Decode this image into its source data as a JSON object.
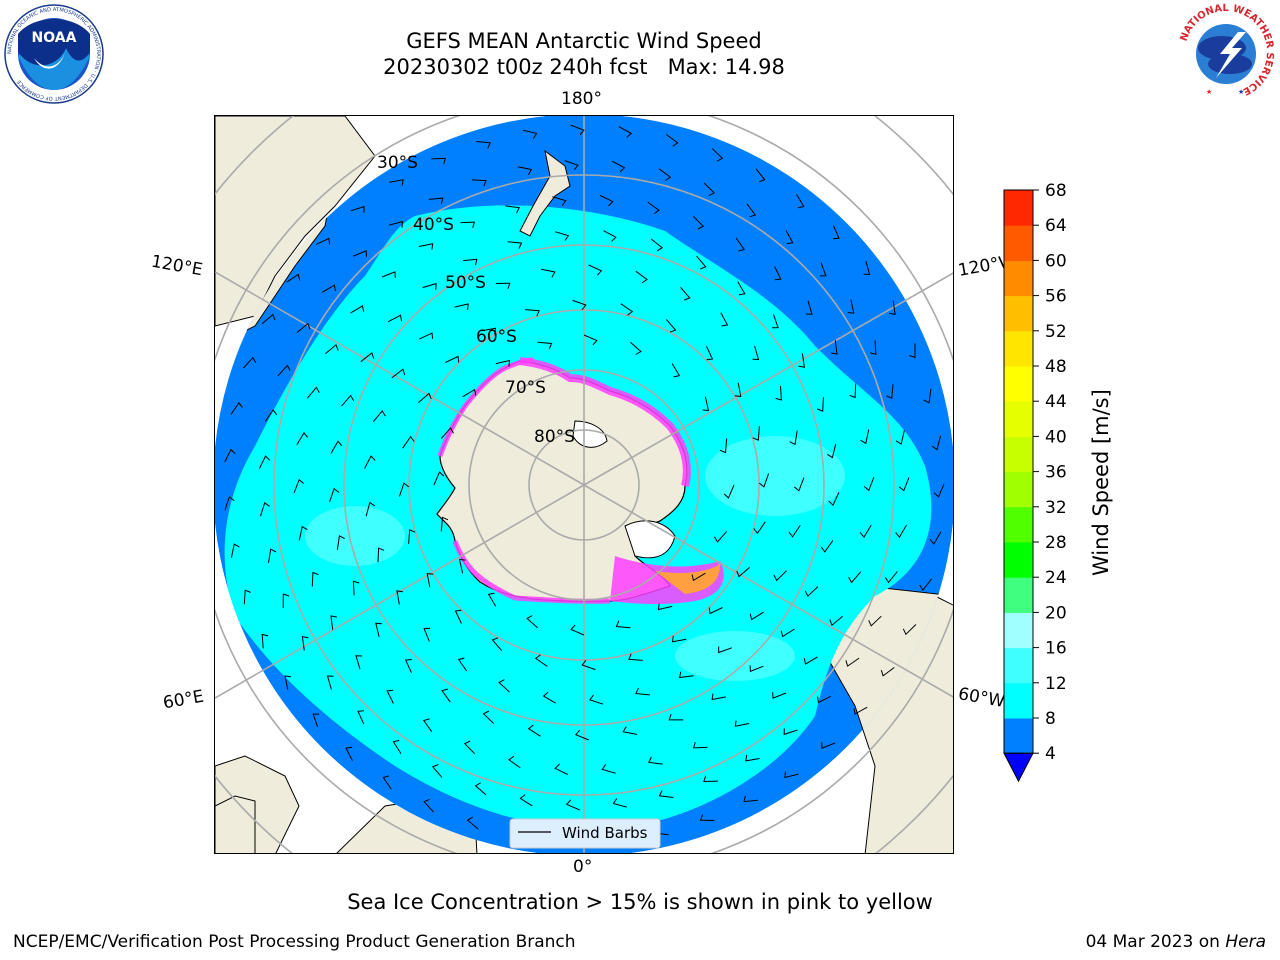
{
  "title": {
    "line1": "GEFS MEAN Antarctic Wind Speed",
    "line2": "20230302 t00z 240h fcst   Max: 14.98"
  },
  "map": {
    "projection": "south-polar-stereographic",
    "longitude_labels": {
      "top": "180°",
      "bottom": "0°",
      "upper_left": "120°E",
      "upper_right": "120°W",
      "lower_left": "60°E",
      "lower_right": "60°W"
    },
    "latitude_labels": [
      "30°S",
      "40°S",
      "50°S",
      "60°S",
      "70°S",
      "80°S"
    ],
    "legend_label": "Wind Barbs",
    "colors": {
      "land": "#efecdc",
      "ocean_4_8": "#0080ff",
      "ocean_8_12": "#00ffff",
      "ocean_12_16": "#40ffff",
      "sea_ice": "#ff40ff",
      "grid": "#aaaaaa"
    }
  },
  "colorbar": {
    "label": "Wind Speed [m/s]",
    "ticks": [
      "4",
      "8",
      "12",
      "16",
      "20",
      "24",
      "28",
      "32",
      "36",
      "40",
      "44",
      "48",
      "52",
      "56",
      "60",
      "64",
      "68"
    ],
    "colors": [
      "#0080ff",
      "#00ffff",
      "#40ffff",
      "#a0ffff",
      "#40ff80",
      "#00ff00",
      "#50ff00",
      "#a0ff00",
      "#c8ff00",
      "#e6ff00",
      "#ffff00",
      "#ffe600",
      "#ffbe00",
      "#ff8c00",
      "#ff5a00",
      "#ff2800",
      "#ff0000"
    ],
    "under_color": "#0000ff"
  },
  "caption": "Sea Ice Concentration > 15% is shown in pink to yellow",
  "footer": {
    "left": "NCEP/EMC/Verification Post Processing Product Generation Branch",
    "right_prefix": "04 Mar 2023 on ",
    "right_host": "Hera"
  },
  "logos": {
    "left_text": "NOAA",
    "left_ring_text": "NATIONAL OCEANIC AND ATMOSPHERIC ADMINISTRATION · U.S. DEPARTMENT OF COMMERCE",
    "right_ring_text": "NATIONAL WEATHER SERVICE"
  }
}
